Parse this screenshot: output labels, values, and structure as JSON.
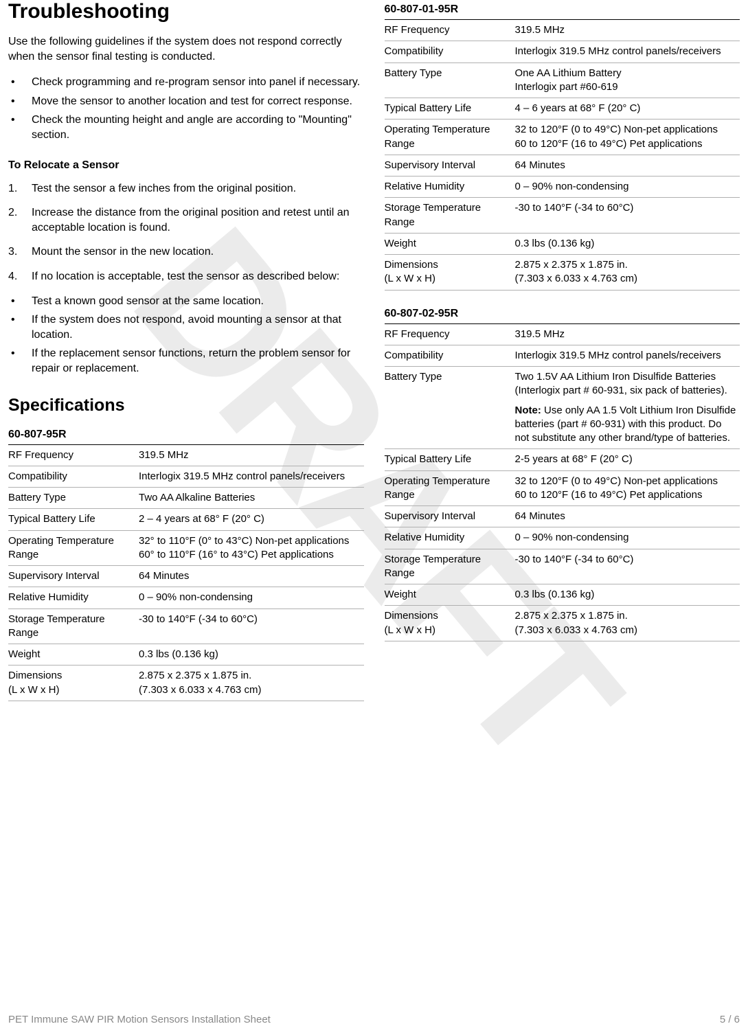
{
  "watermark": "DRAFT",
  "left": {
    "h1": "Troubleshooting",
    "intro": "Use the following guidelines if the system does not respond correctly when the sensor final testing is conducted.",
    "bullets1": [
      "Check programming and re-program sensor into panel if necessary.",
      "Move the sensor to another location and test for correct response.",
      "Check the mounting height and angle are according to \"Mounting\" section."
    ],
    "subhead": "To Relocate a Sensor",
    "steps": [
      "Test the sensor a few inches from the original position.",
      "Increase the distance from the original position and retest until an acceptable location is found.",
      "Mount the sensor in the new location.",
      "If no location is acceptable, test the sensor as described below:"
    ],
    "bullets2": [
      "Test a known good sensor at the same location.",
      "If the system does not respond, avoid mounting a sensor at that location.",
      "If the replacement sensor functions, return the problem sensor for repair or replacement."
    ],
    "h2": "Specifications",
    "spec1": {
      "title": "60-807-95R",
      "rows": [
        {
          "k": "RF Frequency",
          "v": "319.5 MHz"
        },
        {
          "k": "Compatibility",
          "v": "Interlogix 319.5 MHz control panels/receivers"
        },
        {
          "k": "Battery Type",
          "v": "Two AA Alkaline Batteries"
        },
        {
          "k": "Typical Battery Life",
          "v": "2 – 4 years at 68° F (20° C)"
        },
        {
          "k": "Operating Temperature Range",
          "v": "32° to 110°F (0° to 43°C) Non-pet applications\n60° to 110°F (16° to 43°C) Pet applications"
        },
        {
          "k": "Supervisory Interval",
          "v": "64 Minutes"
        },
        {
          "k": "Relative Humidity",
          "v": "0 – 90% non-condensing"
        },
        {
          "k": "Storage Temperature Range",
          "v": "-30 to 140°F (-34 to 60°C)"
        },
        {
          "k": "Weight",
          "v": "0.3 lbs (0.136 kg)"
        },
        {
          "k": "Dimensions\n(L x W x H)",
          "v": "2.875 x 2.375 x 1.875 in.\n(7.303 x 6.033 x 4.763 cm)"
        }
      ]
    }
  },
  "right": {
    "spec2": {
      "title": "60-807-01-95R",
      "rows": [
        {
          "k": "RF Frequency",
          "v": "319.5 MHz"
        },
        {
          "k": "Compatibility",
          "v": "Interlogix 319.5 MHz control panels/receivers"
        },
        {
          "k": "Battery Type",
          "v": "One AA Lithium Battery\nInterlogix part #60-619"
        },
        {
          "k": "Typical Battery Life",
          "v": "4 – 6 years at 68° F (20° C)"
        },
        {
          "k": "Operating Temperature Range",
          "v": "32 to 120°F (0 to 49°C) Non-pet applications\n60 to 120°F (16 to 49°C) Pet applications"
        },
        {
          "k": "Supervisory Interval",
          "v": "64 Minutes"
        },
        {
          "k": "Relative Humidity",
          "v": "0 – 90% non-condensing"
        },
        {
          "k": "Storage Temperature Range",
          "v": "-30 to 140°F (-34 to 60°C)"
        },
        {
          "k": "Weight",
          "v": "0.3 lbs (0.136 kg)"
        },
        {
          "k": "Dimensions\n(L x W x H)",
          "v": "2.875 x 2.375 x 1.875 in.\n(7.303 x 6.033 x 4.763 cm)"
        }
      ]
    },
    "spec3": {
      "title": "60-807-02-95R",
      "rows": [
        {
          "k": "RF Frequency",
          "v": "319.5 MHz"
        },
        {
          "k": "Compatibility",
          "v": "Interlogix 319.5 MHz control panels/receivers"
        },
        {
          "k": "Battery Type",
          "v": "Two 1.5V AA Lithium Iron Disulfide Batteries (Interlogix part # 60-931, six pack of batteries).",
          "note": "Use only AA 1.5 Volt Lithium Iron Disulfide batteries (part # 60-931) with this product. Do not substitute any other brand/type of batteries."
        },
        {
          "k": "Typical Battery Life",
          "v": "2-5 years at 68° F (20° C)"
        },
        {
          "k": "Operating Temperature Range",
          "v": "32 to 120°F (0 to 49°C) Non-pet applications\n60 to 120°F (16 to 49°C) Pet applications"
        },
        {
          "k": "Supervisory Interval",
          "v": "64 Minutes"
        },
        {
          "k": "Relative Humidity",
          "v": "0 – 90% non-condensing"
        },
        {
          "k": "Storage Temperature Range",
          "v": "-30 to 140°F (-34 to 60°C)"
        },
        {
          "k": "Weight",
          "v": "0.3 lbs (0.136 kg)"
        },
        {
          "k": "Dimensions\n(L x W x H)",
          "v": "2.875 x 2.375 x 1.875 in.\n(7.303 x 6.033 x 4.763 cm)"
        }
      ]
    }
  },
  "footer": {
    "left": "PET Immune SAW PIR Motion Sensors Installation Sheet",
    "right": "5 / 6"
  },
  "note_label": "Note:"
}
